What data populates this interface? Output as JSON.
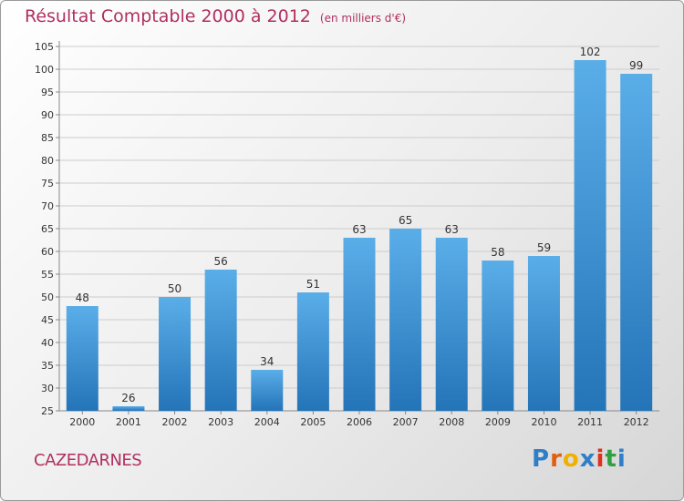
{
  "header": {
    "title": "Résultat Comptable 2000 à 2012",
    "subtitle": "(en milliers d'€)"
  },
  "footer": {
    "commune": "CAZEDARNES",
    "logo_text": "Proxiti",
    "logo_colors": [
      "#2e7fc8",
      "#e06010",
      "#f0b000",
      "#2e7fc8",
      "#e03020",
      "#30a040",
      "#2e7fc8"
    ]
  },
  "colors": {
    "bar_top": "#5aaee8",
    "bar_bottom": "#2474b8",
    "grid": "#cccccc",
    "axis": "#888888",
    "title": "#b03060"
  },
  "chart_data": {
    "type": "bar",
    "categories": [
      "2000",
      "2001",
      "2002",
      "2003",
      "2004",
      "2005",
      "2006",
      "2007",
      "2008",
      "2009",
      "2010",
      "2011",
      "2012"
    ],
    "values": [
      48,
      26,
      50,
      56,
      34,
      51,
      63,
      65,
      63,
      58,
      59,
      102,
      99
    ],
    "title": "Résultat Comptable 2000 à 2012",
    "xlabel": "",
    "ylabel": "",
    "ylim": [
      25,
      105
    ],
    "yticks": [
      25,
      30,
      35,
      40,
      45,
      50,
      55,
      60,
      65,
      70,
      75,
      80,
      85,
      90,
      95,
      100,
      105
    ],
    "grid": true,
    "data_labels": true
  }
}
